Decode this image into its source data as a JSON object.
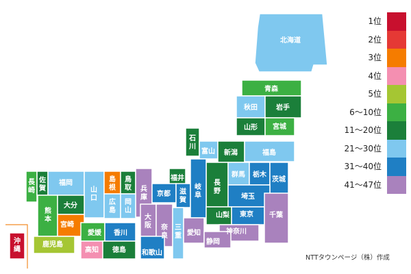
{
  "colors": {
    "rank_1": "#c8102e",
    "rank_2": "#e53935",
    "rank_3": "#f57c00",
    "rank_4": "#f48fb1",
    "rank_5": "#a5c633",
    "rank_6_10": "#3cb043",
    "rank_11_20": "#1b7f3a",
    "rank_21_30": "#7fc8ef",
    "rank_31_40": "#1f7fc4",
    "rank_41_47": "#a982bd",
    "label_text": "#ffffff",
    "outline": "#ffffff"
  },
  "legend": {
    "items": [
      {
        "label": "1位",
        "color": "#c8102e"
      },
      {
        "label": "2位",
        "color": "#e53935"
      },
      {
        "label": "3位",
        "color": "#f57c00"
      },
      {
        "label": "4位",
        "color": "#f48fb1"
      },
      {
        "label": "5位",
        "color": "#a5c633"
      },
      {
        "label": "6〜10位",
        "color": "#3cb043"
      },
      {
        "label": "11〜20位",
        "color": "#1b7f3a"
      },
      {
        "label": "21〜30位",
        "color": "#7fc8ef"
      },
      {
        "label": "31〜40位",
        "color": "#1f7fc4"
      },
      {
        "label": "41〜47位",
        "color": "#a982bd"
      }
    ]
  },
  "credit": "NTTタウンページ（株）作成",
  "prefectures": [
    {
      "name": "北海道",
      "color": "#7fc8ef"
    },
    {
      "name": "青森",
      "color": "#3cb043"
    },
    {
      "name": "秋田",
      "color": "#7fc8ef"
    },
    {
      "name": "岩手",
      "color": "#1b7f3a"
    },
    {
      "name": "山形",
      "color": "#1b7f3a"
    },
    {
      "name": "宮城",
      "color": "#3cb043"
    },
    {
      "name": "石川",
      "color": "#1b7f3a"
    },
    {
      "name": "富山",
      "color": "#7fc8ef"
    },
    {
      "name": "新潟",
      "color": "#1b7f3a"
    },
    {
      "name": "福島",
      "color": "#7fc8ef"
    },
    {
      "name": "長崎",
      "color": "#3cb043"
    },
    {
      "name": "佐賀",
      "color": "#1b7f3a"
    },
    {
      "name": "福岡",
      "color": "#7fc8ef"
    },
    {
      "name": "山口",
      "color": "#7fc8ef"
    },
    {
      "name": "島根",
      "color": "#f57c00"
    },
    {
      "name": "鳥取",
      "color": "#1b7f3a"
    },
    {
      "name": "兵庫",
      "color": "#a982bd"
    },
    {
      "name": "福井",
      "color": "#1b7f3a"
    },
    {
      "name": "長野",
      "color": "#1b7f3a"
    },
    {
      "name": "群馬",
      "color": "#7fc8ef"
    },
    {
      "name": "栃木",
      "color": "#1f7fc4"
    },
    {
      "name": "茨城",
      "color": "#1f7fc4"
    },
    {
      "name": "熊本",
      "color": "#3cb043"
    },
    {
      "name": "大分",
      "color": "#1b7f3a"
    },
    {
      "name": "広島",
      "color": "#7fc8ef"
    },
    {
      "name": "岡山",
      "color": "#7fc8ef"
    },
    {
      "name": "京都",
      "color": "#1f7fc4"
    },
    {
      "name": "滋賀",
      "color": "#1f7fc4"
    },
    {
      "name": "岐阜",
      "color": "#1f7fc4"
    },
    {
      "name": "埼玉",
      "color": "#1f7fc4"
    },
    {
      "name": "宮崎",
      "color": "#f57c00"
    },
    {
      "name": "山梨",
      "color": "#1b7f3a"
    },
    {
      "name": "東京",
      "color": "#1f7fc4"
    },
    {
      "name": "千葉",
      "color": "#a982bd"
    },
    {
      "name": "大阪",
      "color": "#a982bd"
    },
    {
      "name": "奈良",
      "color": "#a982bd"
    },
    {
      "name": "三重",
      "color": "#7fc8ef"
    },
    {
      "name": "愛媛",
      "color": "#3cb043"
    },
    {
      "name": "香川",
      "color": "#1f7fc4"
    },
    {
      "name": "愛知",
      "color": "#a982bd"
    },
    {
      "name": "神奈川",
      "color": "#a982bd"
    },
    {
      "name": "沖縄",
      "color": "#c8102e"
    },
    {
      "name": "鹿児島",
      "color": "#a5c633"
    },
    {
      "name": "高知",
      "color": "#f48fb1"
    },
    {
      "name": "徳島",
      "color": "#1b7f3a"
    },
    {
      "name": "和歌山",
      "color": "#1f7fc4"
    },
    {
      "name": "静岡",
      "color": "#a982bd"
    }
  ]
}
